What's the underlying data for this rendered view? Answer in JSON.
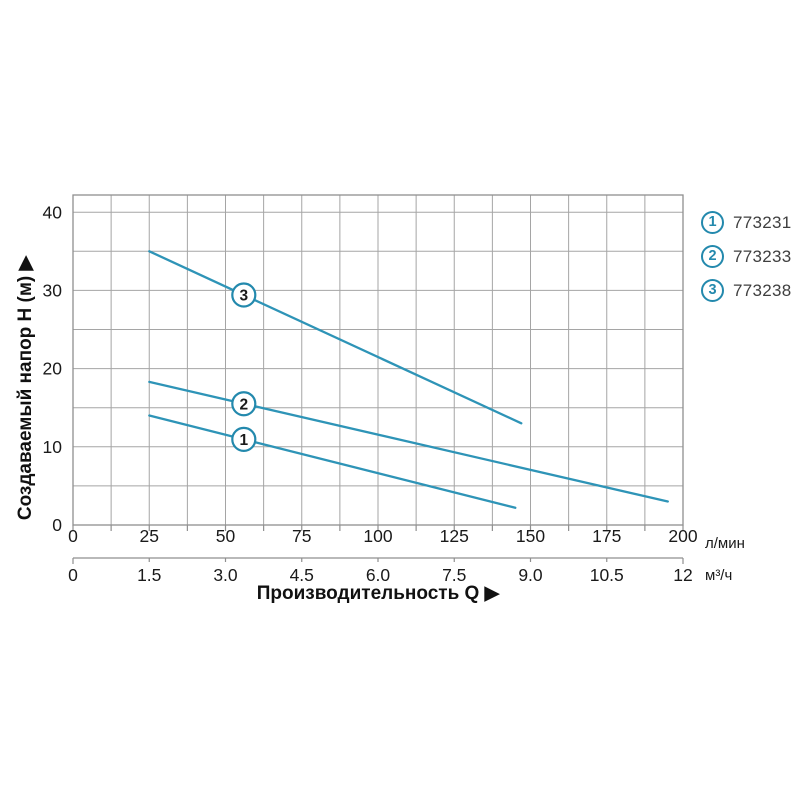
{
  "chart_data": {
    "type": "line",
    "title": "",
    "x_axis": {
      "label": "Производительность Q ▶",
      "primary_unit": "л/мин",
      "primary_ticks": [
        "0",
        "25",
        "50",
        "75",
        "100",
        "125",
        "150",
        "175",
        "200"
      ],
      "primary_tick_step": 25,
      "primary_minor_step": 12.5,
      "primary_range": [
        0,
        200
      ],
      "secondary_unit": "м³/ч",
      "secondary_ticks": [
        "0",
        "1.5",
        "3.0",
        "4.5",
        "6.0",
        "7.5",
        "9.0",
        "10.5",
        "12"
      ],
      "secondary_range": [
        0,
        12
      ]
    },
    "y_axis": {
      "label": "Создаваемый напор H (м) ▶",
      "ticks": [
        "0",
        "10",
        "20",
        "30",
        "40"
      ],
      "tick_step": 10,
      "grid_step": 5,
      "range": [
        0,
        42.2
      ]
    },
    "grid": true,
    "legend_position": "top-right",
    "series": [
      {
        "id": "1",
        "part_number": "773231",
        "points_lmin_m": [
          [
            25,
            14.0
          ],
          [
            145,
            2.2
          ]
        ],
        "label_at_q": 56
      },
      {
        "id": "2",
        "part_number": "773233",
        "points_lmin_m": [
          [
            25,
            18.3
          ],
          [
            195,
            3.0
          ]
        ],
        "label_at_q": 56
      },
      {
        "id": "3",
        "part_number": "773238",
        "points_lmin_m": [
          [
            25,
            35.0
          ],
          [
            147,
            13.0
          ]
        ],
        "label_at_q": 56
      }
    ],
    "colors": {
      "line": "#2e94b7",
      "badge": "#2389ad",
      "grid": "#a5a5a5",
      "frame": "#8f8f8f",
      "tick": "#8f8f8f",
      "text": "#1a1a1a",
      "legend_text": "#3f3f3f"
    }
  }
}
